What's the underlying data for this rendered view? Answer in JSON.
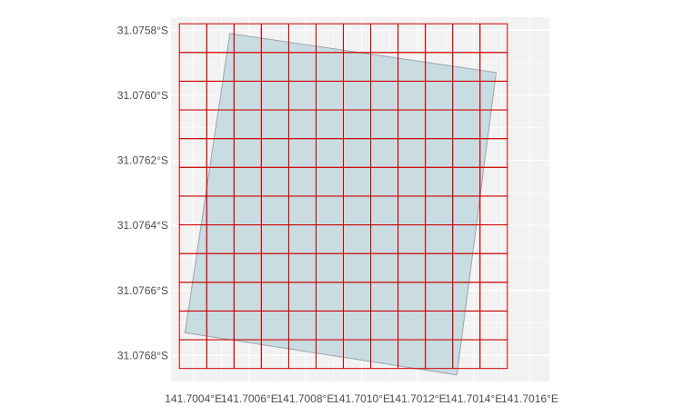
{
  "chart_data": {
    "type": "map",
    "title": "",
    "xlabel": "",
    "ylabel": "",
    "colors": {
      "panel_background": "#f2f2f2",
      "gridline": "#ffffff",
      "parcel_fill": "#c9dce2",
      "parcel_stroke": "#9aa5ab",
      "grid_cells_stroke": "#cc0000",
      "tick_label": "#4d4d4d"
    },
    "x_ticks": [
      {
        "value": 141.7004,
        "label": "141.7004°E"
      },
      {
        "value": 141.7006,
        "label": "141.7006°E"
      },
      {
        "value": 141.7008,
        "label": "141.7008°E"
      },
      {
        "value": 141.701,
        "label": "141.7010°E"
      },
      {
        "value": 141.7012,
        "label": "141.7012°E"
      },
      {
        "value": 141.7014,
        "label": "141.7014°E"
      },
      {
        "value": 141.7016,
        "label": "141.7016°E"
      }
    ],
    "y_ticks": [
      {
        "value": -31.0758,
        "label": "31.0758°S"
      },
      {
        "value": -31.076,
        "label": "31.0760°S"
      },
      {
        "value": -31.0762,
        "label": "31.0762°S"
      },
      {
        "value": -31.0764,
        "label": "31.0764°S"
      },
      {
        "value": -31.0766,
        "label": "31.0766°S"
      },
      {
        "value": -31.0768,
        "label": "31.0768°S"
      }
    ],
    "xlim": [
      141.70032,
      141.70167
    ],
    "ylim": [
      -31.07688,
      -31.07576
    ],
    "parcel_polygon": [
      {
        "lon": 141.70053,
        "lat": -31.07581
      },
      {
        "lon": 141.70148,
        "lat": -31.07593
      },
      {
        "lon": 141.70134,
        "lat": -31.07686
      },
      {
        "lon": 141.70037,
        "lat": -31.07673
      }
    ],
    "grid_cells": {
      "lon_start": 141.70035,
      "lon_end": 141.70152,
      "lat_top": -31.07578,
      "lat_bottom": -31.07684,
      "columns": 12,
      "rows": 12
    }
  }
}
